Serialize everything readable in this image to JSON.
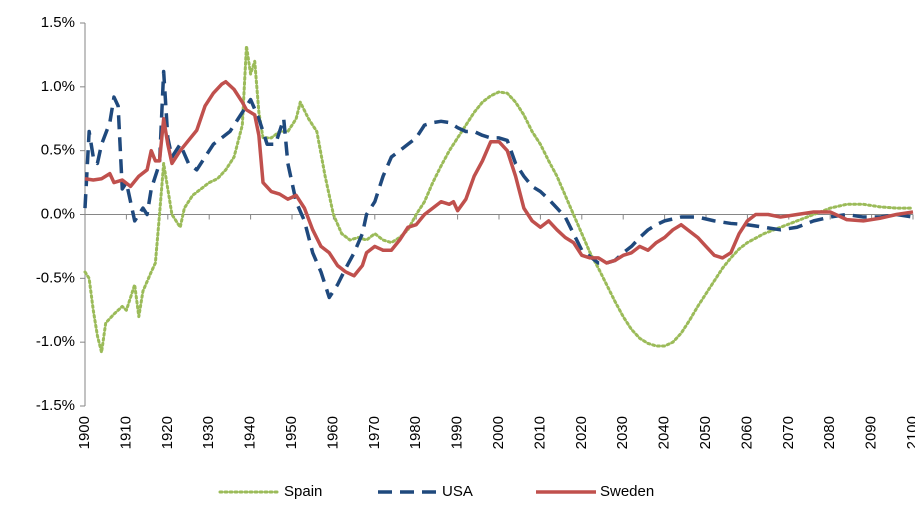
{
  "chart_data": {
    "type": "line",
    "ylim": [
      -1.5,
      1.5
    ],
    "yticks": [
      {
        "value": -1.5,
        "label": "-1.5%"
      },
      {
        "value": -1,
        "label": "-1.0%"
      },
      {
        "value": -0.5,
        "label": "-0.5%"
      },
      {
        "value": 0,
        "label": "0.0%"
      },
      {
        "value": 0.5,
        "label": "0.5%"
      },
      {
        "value": 1,
        "label": "1.0%"
      },
      {
        "value": 1.5,
        "label": "1.5%"
      }
    ],
    "xlim": [
      1900,
      2100
    ],
    "xticks": [
      1900,
      1910,
      1920,
      1930,
      1940,
      1950,
      1960,
      1970,
      1980,
      1990,
      2000,
      2010,
      2020,
      2030,
      2040,
      2050,
      2060,
      2070,
      2080,
      2090,
      2100
    ],
    "grid": false,
    "legend": "bottom",
    "series": [
      {
        "name": "Spain",
        "color": "#9bbb59",
        "dash": "dotted",
        "x": [
          1900,
          1901,
          1902,
          1903,
          1904,
          1905,
          1907,
          1909,
          1910,
          1912,
          1913,
          1914,
          1916,
          1917,
          1918,
          1919,
          1920,
          1921,
          1923,
          1924,
          1926,
          1928,
          1930,
          1932,
          1934,
          1936,
          1938,
          1939,
          1940,
          1941,
          1942,
          1943,
          1945,
          1947,
          1949,
          1951,
          1952,
          1954,
          1956,
          1958,
          1960,
          1962,
          1964,
          1966,
          1968,
          1970,
          1972,
          1974,
          1976,
          1978,
          1980,
          1982,
          1984,
          1986,
          1988,
          1990,
          1992,
          1994,
          1996,
          1998,
          2000,
          2002,
          2004,
          2006,
          2008,
          2010,
          2012,
          2014,
          2016,
          2018,
          2020,
          2022,
          2024,
          2026,
          2028,
          2030,
          2032,
          2034,
          2036,
          2038,
          2040,
          2042,
          2044,
          2046,
          2048,
          2050,
          2052,
          2054,
          2056,
          2058,
          2060,
          2064,
          2068,
          2072,
          2076,
          2080,
          2084,
          2088,
          2092,
          2096,
          2100
        ],
        "values": [
          -0.45,
          -0.5,
          -0.75,
          -0.95,
          -1.08,
          -0.85,
          -0.78,
          -0.72,
          -0.75,
          -0.55,
          -0.8,
          -0.6,
          -0.45,
          -0.38,
          0.0,
          0.4,
          0.2,
          0.0,
          -0.1,
          0.05,
          0.15,
          0.2,
          0.25,
          0.28,
          0.35,
          0.45,
          0.7,
          1.32,
          1.1,
          1.2,
          0.8,
          0.6,
          0.6,
          0.65,
          0.65,
          0.75,
          0.88,
          0.75,
          0.65,
          0.3,
          0.0,
          -0.15,
          -0.2,
          -0.18,
          -0.2,
          -0.15,
          -0.2,
          -0.22,
          -0.18,
          -0.12,
          0.0,
          0.1,
          0.25,
          0.38,
          0.5,
          0.6,
          0.7,
          0.8,
          0.88,
          0.93,
          0.96,
          0.95,
          0.88,
          0.78,
          0.65,
          0.55,
          0.42,
          0.3,
          0.15,
          0.0,
          -0.15,
          -0.3,
          -0.42,
          -0.55,
          -0.68,
          -0.8,
          -0.9,
          -0.97,
          -1.01,
          -1.03,
          -1.03,
          -1.0,
          -0.93,
          -0.83,
          -0.72,
          -0.62,
          -0.52,
          -0.42,
          -0.34,
          -0.27,
          -0.22,
          -0.15,
          -0.1,
          -0.05,
          0.0,
          0.05,
          0.08,
          0.08,
          0.06,
          0.05,
          0.05
        ]
      },
      {
        "name": "USA",
        "color": "#1f497d",
        "dash": "dashed",
        "x": [
          1900,
          1901,
          1902,
          1903,
          1904,
          1906,
          1907,
          1908,
          1909,
          1910,
          1911,
          1912,
          1914,
          1915,
          1916,
          1917,
          1918,
          1919,
          1920,
          1921,
          1923,
          1925,
          1927,
          1929,
          1931,
          1933,
          1935,
          1937,
          1939,
          1940,
          1942,
          1944,
          1946,
          1948,
          1949,
          1951,
          1953,
          1955,
          1957,
          1959,
          1961,
          1963,
          1965,
          1967,
          1968,
          1970,
          1972,
          1974,
          1976,
          1978,
          1980,
          1982,
          1984,
          1986,
          1988,
          1990,
          1992,
          1994,
          1996,
          1998,
          2000,
          2002,
          2004,
          2006,
          2008,
          2010,
          2012,
          2014,
          2016,
          2018,
          2020,
          2022,
          2024,
          2026,
          2028,
          2030,
          2032,
          2034,
          2036,
          2038,
          2040,
          2044,
          2048,
          2052,
          2056,
          2060,
          2064,
          2068,
          2072,
          2076,
          2080,
          2084,
          2088,
          2092,
          2096,
          2100
        ],
        "values": [
          0.05,
          0.65,
          0.45,
          0.4,
          0.55,
          0.72,
          0.92,
          0.85,
          0.2,
          0.25,
          0.1,
          -0.05,
          0.05,
          0.0,
          0.2,
          0.3,
          0.4,
          1.12,
          0.6,
          0.45,
          0.55,
          0.4,
          0.35,
          0.45,
          0.55,
          0.6,
          0.65,
          0.75,
          0.85,
          0.9,
          0.75,
          0.55,
          0.55,
          0.75,
          0.4,
          0.1,
          -0.05,
          -0.3,
          -0.45,
          -0.65,
          -0.55,
          -0.42,
          -0.3,
          -0.15,
          0.0,
          0.1,
          0.3,
          0.45,
          0.5,
          0.55,
          0.6,
          0.7,
          0.72,
          0.73,
          0.72,
          0.68,
          0.65,
          0.65,
          0.62,
          0.6,
          0.6,
          0.58,
          0.4,
          0.3,
          0.22,
          0.18,
          0.12,
          0.05,
          -0.02,
          -0.15,
          -0.28,
          -0.33,
          -0.38,
          -0.38,
          -0.36,
          -0.3,
          -0.25,
          -0.18,
          -0.12,
          -0.08,
          -0.05,
          -0.02,
          -0.02,
          -0.05,
          -0.07,
          -0.08,
          -0.1,
          -0.12,
          -0.1,
          -0.05,
          -0.02,
          0.0,
          -0.02,
          -0.02,
          0.0,
          -0.02
        ]
      },
      {
        "name": "Sweden",
        "color": "#c0504d",
        "dash": "solid",
        "x": [
          1900,
          1902,
          1904,
          1906,
          1907,
          1909,
          1911,
          1913,
          1915,
          1916,
          1917,
          1918,
          1919,
          1920,
          1921,
          1923,
          1925,
          1927,
          1929,
          1931,
          1933,
          1934,
          1936,
          1938,
          1939,
          1941,
          1942,
          1943,
          1945,
          1947,
          1949,
          1951,
          1953,
          1955,
          1957,
          1959,
          1961,
          1963,
          1965,
          1967,
          1968,
          1970,
          1972,
          1974,
          1976,
          1978,
          1980,
          1982,
          1984,
          1986,
          1988,
          1989,
          1990,
          1992,
          1994,
          1996,
          1998,
          2000,
          2002,
          2004,
          2006,
          2008,
          2010,
          2012,
          2014,
          2016,
          2018,
          2020,
          2022,
          2024,
          2026,
          2028,
          2030,
          2032,
          2034,
          2036,
          2038,
          2040,
          2042,
          2044,
          2046,
          2048,
          2050,
          2052,
          2054,
          2056,
          2058,
          2060,
          2062,
          2065,
          2068,
          2072,
          2076,
          2080,
          2084,
          2088,
          2092,
          2096,
          2100
        ],
        "values": [
          0.28,
          0.27,
          0.28,
          0.32,
          0.25,
          0.27,
          0.22,
          0.3,
          0.35,
          0.5,
          0.42,
          0.42,
          0.75,
          0.55,
          0.4,
          0.5,
          0.58,
          0.66,
          0.85,
          0.95,
          1.02,
          1.04,
          0.98,
          0.88,
          0.82,
          0.78,
          0.62,
          0.25,
          0.18,
          0.16,
          0.12,
          0.15,
          0.05,
          -0.12,
          -0.25,
          -0.3,
          -0.4,
          -0.45,
          -0.48,
          -0.4,
          -0.3,
          -0.25,
          -0.28,
          -0.28,
          -0.2,
          -0.1,
          -0.08,
          0.0,
          0.05,
          0.1,
          0.08,
          0.1,
          0.03,
          0.12,
          0.3,
          0.42,
          0.57,
          0.57,
          0.5,
          0.3,
          0.05,
          -0.05,
          -0.1,
          -0.05,
          -0.12,
          -0.18,
          -0.22,
          -0.32,
          -0.34,
          -0.34,
          -0.38,
          -0.36,
          -0.32,
          -0.3,
          -0.25,
          -0.28,
          -0.22,
          -0.18,
          -0.12,
          -0.08,
          -0.13,
          -0.18,
          -0.25,
          -0.32,
          -0.34,
          -0.3,
          -0.15,
          -0.05,
          0.0,
          0.0,
          -0.02,
          0.0,
          0.02,
          0.02,
          -0.04,
          -0.05,
          -0.03,
          0.0,
          0.02
        ]
      }
    ]
  }
}
